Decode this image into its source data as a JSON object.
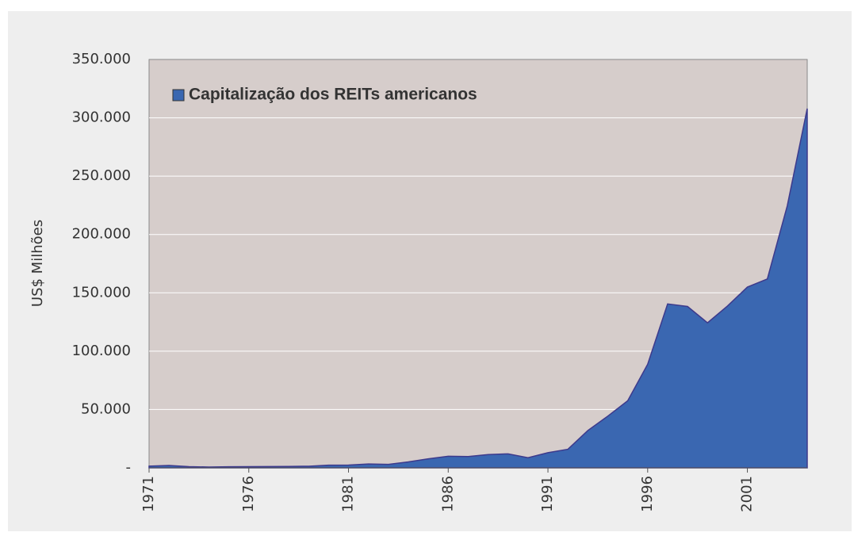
{
  "chart_data": {
    "type": "area",
    "y_label": "US$ Milhões",
    "x": [
      1971,
      1972,
      1973,
      1974,
      1975,
      1976,
      1977,
      1978,
      1979,
      1980,
      1981,
      1982,
      1983,
      1984,
      1985,
      1986,
      1987,
      1988,
      1989,
      1990,
      1991,
      1992,
      1993,
      1994,
      1995,
      1996,
      1997,
      1998,
      1999,
      2000,
      2001,
      2002,
      2003,
      2004
    ],
    "series": [
      {
        "name": "Capitalização dos REITs americanos",
        "color": "#3a67b1",
        "values": [
          1500,
          2000,
          1000,
          700,
          900,
          1000,
          1100,
          1200,
          1400,
          2300,
          2400,
          3300,
          3000,
          5100,
          7700,
          9900,
          9700,
          11400,
          12000,
          8700,
          13000,
          15900,
          32000,
          44300,
          57500,
          88800,
          140500,
          138300,
          124300,
          138700,
          154900,
          161900,
          224600,
          307900
        ]
      }
    ],
    "xlim": [
      1971,
      2004
    ],
    "xticks": [
      1971,
      1976,
      1981,
      1986,
      1991,
      1996,
      2001
    ],
    "ylim": [
      0,
      350000
    ],
    "yticks": [
      {
        "value": 0,
        "label": "-"
      },
      {
        "value": 50000,
        "label": "50.000"
      },
      {
        "value": 100000,
        "label": "100.000"
      },
      {
        "value": 150000,
        "label": "150.000"
      },
      {
        "value": 200000,
        "label": "200.000"
      },
      {
        "value": 250000,
        "label": "250.000"
      },
      {
        "value": 300000,
        "label": "300.000"
      },
      {
        "value": 350000,
        "label": "350.000"
      }
    ],
    "grid": true,
    "legend": "top-left"
  }
}
